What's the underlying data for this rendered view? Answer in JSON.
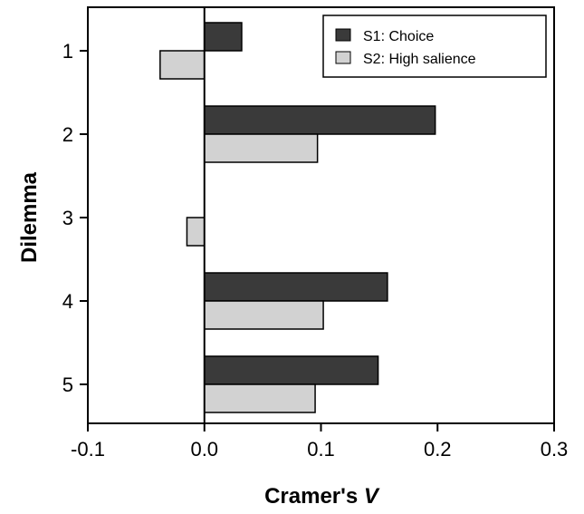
{
  "chart_data": {
    "type": "bar",
    "orientation": "horizontal",
    "categories": [
      "1",
      "2",
      "3",
      "4",
      "5"
    ],
    "series": [
      {
        "name": "S1: Choice",
        "values": [
          0.032,
          0.198,
          null,
          0.157,
          0.149
        ],
        "color": "#3a3a3a"
      },
      {
        "name": "S2: High salience",
        "values": [
          -0.038,
          0.097,
          -0.015,
          0.102,
          0.095
        ],
        "color": "#d2d2d2"
      }
    ],
    "xlabel_main": "Cramer's ",
    "xlabel_italic": "V",
    "ylabel": "Dilemma",
    "xlim": [
      -0.1,
      0.3
    ],
    "xticks": [
      "-0.1",
      "0.0",
      "0.1",
      "0.2",
      "0.3"
    ],
    "xtick_values": [
      -0.1,
      0.0,
      0.1,
      0.2,
      0.3
    ],
    "grid": false,
    "legend_position": "top-right"
  }
}
